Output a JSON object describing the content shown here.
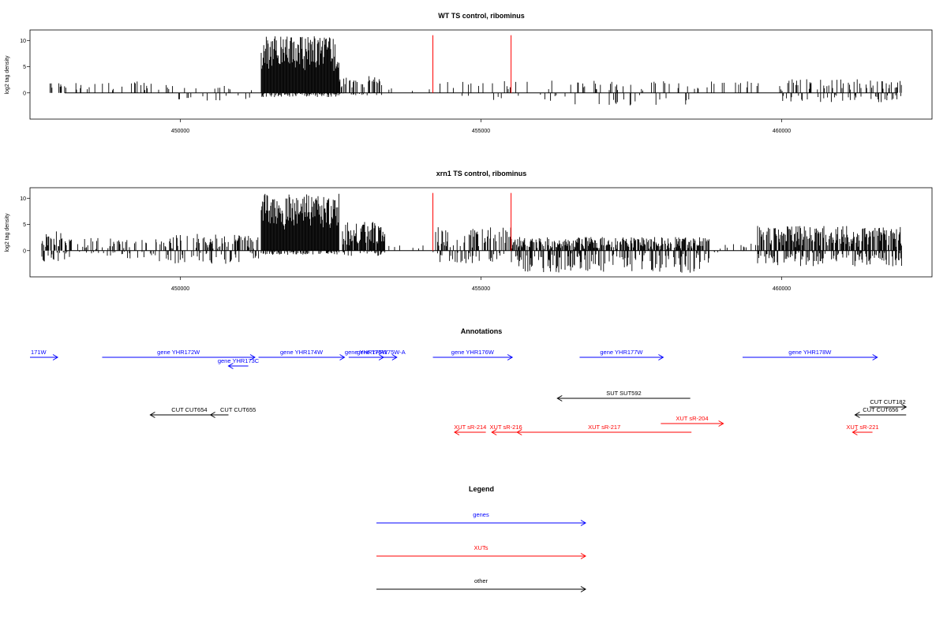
{
  "chart_data": [
    {
      "type": "bar",
      "title": "WT TS control, ribominus",
      "ylabel": "log2 tag density",
      "xlim": [
        447500,
        462500
      ],
      "ylim": [
        -5,
        12
      ],
      "yticks": [
        0,
        5,
        10
      ],
      "xticks": [
        450000,
        455000,
        460000
      ],
      "xtick_labels": [
        "450000",
        "455000",
        "460000"
      ],
      "vlines": {
        "color": "#ff0000",
        "x": [
          454200,
          455500
        ],
        "top": 11
      },
      "regions": [
        {
          "x": [
            447800,
            449800
          ],
          "pos": [
            0.5,
            2.2
          ],
          "neg": [
            0,
            0
          ],
          "density": 0.15,
          "seed": 11
        },
        {
          "x": [
            449800,
            451200
          ],
          "pos": [
            0.5,
            1.8
          ],
          "neg": [
            -0.3,
            -1.5
          ],
          "density": 0.12,
          "seed": 12
        },
        {
          "x": [
            451350,
            452650
          ],
          "pos": [
            4,
            10.8
          ],
          "neg": [
            0,
            -0.8
          ],
          "density": 1.0,
          "seed": 13
        },
        {
          "x": [
            452650,
            453350
          ],
          "pos": [
            0.5,
            3.2
          ],
          "neg": [
            0,
            -0.5
          ],
          "density": 0.45,
          "seed": 14
        },
        {
          "x": [
            453350,
            454200
          ],
          "pos": [
            0.3,
            1.2
          ],
          "neg": [
            0,
            0
          ],
          "density": 0.05,
          "seed": 15
        },
        {
          "x": [
            454300,
            456500
          ],
          "pos": [
            0.4,
            2.5
          ],
          "neg": [
            -0.3,
            -1.8
          ],
          "density": 0.1,
          "seed": 16
        },
        {
          "x": [
            456500,
            458500
          ],
          "pos": [
            0.4,
            2.3
          ],
          "neg": [
            -0.4,
            -2.4
          ],
          "density": 0.14,
          "seed": 17
        },
        {
          "x": [
            458500,
            460000
          ],
          "pos": [
            0.5,
            2.2
          ],
          "neg": [
            0,
            0
          ],
          "density": 0.1,
          "seed": 18
        },
        {
          "x": [
            460000,
            462000
          ],
          "pos": [
            0.4,
            2.6
          ],
          "neg": [
            -0.3,
            -1.8
          ],
          "density": 0.3,
          "seed": 19
        }
      ]
    },
    {
      "type": "bar",
      "title": "xrn1 TS control, ribominus",
      "ylabel": "log2 tag density",
      "xlim": [
        447500,
        462500
      ],
      "ylim": [
        -5,
        12
      ],
      "yticks": [
        0,
        5,
        10
      ],
      "xticks": [
        450000,
        455000,
        460000
      ],
      "xtick_labels": [
        "450000",
        "455000",
        "460000"
      ],
      "vlines": {
        "color": "#ff0000",
        "x": [
          454200,
          455500
        ],
        "top": 11
      },
      "regions": [
        {
          "x": [
            447700,
            448100
          ],
          "pos": [
            0.5,
            3.8
          ],
          "neg": [
            -0.3,
            -2.2
          ],
          "density": 0.6,
          "seed": 21
        },
        {
          "x": [
            448100,
            449600
          ],
          "pos": [
            0.3,
            2.4
          ],
          "neg": [
            -0.2,
            -1.5
          ],
          "density": 0.25,
          "seed": 22
        },
        {
          "x": [
            449600,
            451300
          ],
          "pos": [
            0.3,
            3.2
          ],
          "neg": [
            -0.3,
            -2.5
          ],
          "density": 0.35,
          "seed": 23
        },
        {
          "x": [
            451350,
            452650
          ],
          "pos": [
            4,
            11
          ],
          "neg": [
            0,
            -0.8
          ],
          "density": 1.0,
          "seed": 24
        },
        {
          "x": [
            452700,
            453400
          ],
          "pos": [
            0.8,
            5.5
          ],
          "neg": [
            -0.2,
            -1.0
          ],
          "density": 0.8,
          "seed": 25
        },
        {
          "x": [
            453400,
            454200
          ],
          "pos": [
            0.2,
            1.2
          ],
          "neg": [
            0,
            -0.5
          ],
          "density": 0.08,
          "seed": 26
        },
        {
          "x": [
            454250,
            455500
          ],
          "pos": [
            0.3,
            4.5
          ],
          "neg": [
            -0.4,
            -2.8
          ],
          "density": 0.45,
          "seed": 27
        },
        {
          "x": [
            455500,
            458800
          ],
          "pos": [
            0.2,
            2.6
          ],
          "neg": [
            -0.5,
            -4.2
          ],
          "density": 0.75,
          "seed": 28
        },
        {
          "x": [
            458800,
            459600
          ],
          "pos": [
            0.3,
            1.6
          ],
          "neg": [
            0,
            -0.8
          ],
          "density": 0.12,
          "seed": 29
        },
        {
          "x": [
            459600,
            462000
          ],
          "pos": [
            0.6,
            4.7
          ],
          "neg": [
            -0.3,
            -3.0
          ],
          "density": 0.75,
          "seed": 30
        }
      ]
    }
  ],
  "annotations": {
    "title": "Annotations",
    "items": [
      {
        "label": "171W",
        "x1": 447500,
        "x2": 447960,
        "row": 0,
        "dir": "right",
        "color": "#0000ff",
        "anchor": "start"
      },
      {
        "label": "gene YHR172W",
        "x1": 448700,
        "x2": 451240,
        "row": 0,
        "dir": "right",
        "color": "#0000ff"
      },
      {
        "label": "gene YHR173C",
        "x1": 450800,
        "x2": 451130,
        "row": 1,
        "dir": "left",
        "color": "#0000ff"
      },
      {
        "label": "gene YHR174W",
        "x1": 451300,
        "x2": 452730,
        "row": 0,
        "dir": "right",
        "color": "#0000ff"
      },
      {
        "label": "gene YHR175W",
        "x1": 452800,
        "x2": 453380,
        "row": 0,
        "dir": "right",
        "color": "#0000ff"
      },
      {
        "label": "gene YHR175W-A",
        "x1": 453300,
        "x2": 453600,
        "row": 0,
        "dir": "right",
        "color": "#0000ff",
        "text_x": 453340
      },
      {
        "label": "gene YHR176W",
        "x1": 454200,
        "x2": 455520,
        "row": 0,
        "dir": "right",
        "color": "#0000ff"
      },
      {
        "label": "gene YHR177W",
        "x1": 456640,
        "x2": 458030,
        "row": 0,
        "dir": "right",
        "color": "#0000ff"
      },
      {
        "label": "gene YHR178W",
        "x1": 459350,
        "x2": 461590,
        "row": 0,
        "dir": "right",
        "color": "#0000ff"
      },
      {
        "label": "SUT SUT592",
        "x1": 456270,
        "x2": 458480,
        "row": 2,
        "dir": "left",
        "color": "#000000"
      },
      {
        "label": "CUT CUT182",
        "x1": 461460,
        "x2": 462070,
        "row": 3,
        "dir": "right",
        "color": "#000000"
      },
      {
        "label": "CUT CUT654",
        "x1": 449500,
        "x2": 450800,
        "row": 4,
        "dir": "left",
        "color": "#000000"
      },
      {
        "label": "CUT CUT655",
        "x1": 450500,
        "x2": 450800,
        "row": 4,
        "dir": "left",
        "color": "#000000",
        "text_x": 450960
      },
      {
        "label": "CUT CUT656",
        "x1": 461220,
        "x2": 462070,
        "row": 4,
        "dir": "left",
        "color": "#000000"
      },
      {
        "label": "XUT sR-204",
        "x1": 457990,
        "x2": 459030,
        "row": 5,
        "dir": "right",
        "color": "#ff0000"
      },
      {
        "label": "XUT sR-214",
        "x1": 454560,
        "x2": 455080,
        "row": 6,
        "dir": "left",
        "color": "#ff0000"
      },
      {
        "label": "XUT sR-216",
        "x1": 455180,
        "x2": 455650,
        "row": 6,
        "dir": "left",
        "color": "#ff0000"
      },
      {
        "label": "XUT sR-217",
        "x1": 455600,
        "x2": 458500,
        "row": 6,
        "dir": "left",
        "color": "#ff0000"
      },
      {
        "label": "XUT sR-221",
        "x1": 461180,
        "x2": 461510,
        "row": 6,
        "dir": "left",
        "color": "#ff0000"
      }
    ]
  },
  "legend": {
    "title": "Legend",
    "items": [
      {
        "label": "genes",
        "color": "#0000ff"
      },
      {
        "label": "XUTs",
        "color": "#ff0000"
      },
      {
        "label": "other",
        "color": "#000000"
      }
    ]
  }
}
